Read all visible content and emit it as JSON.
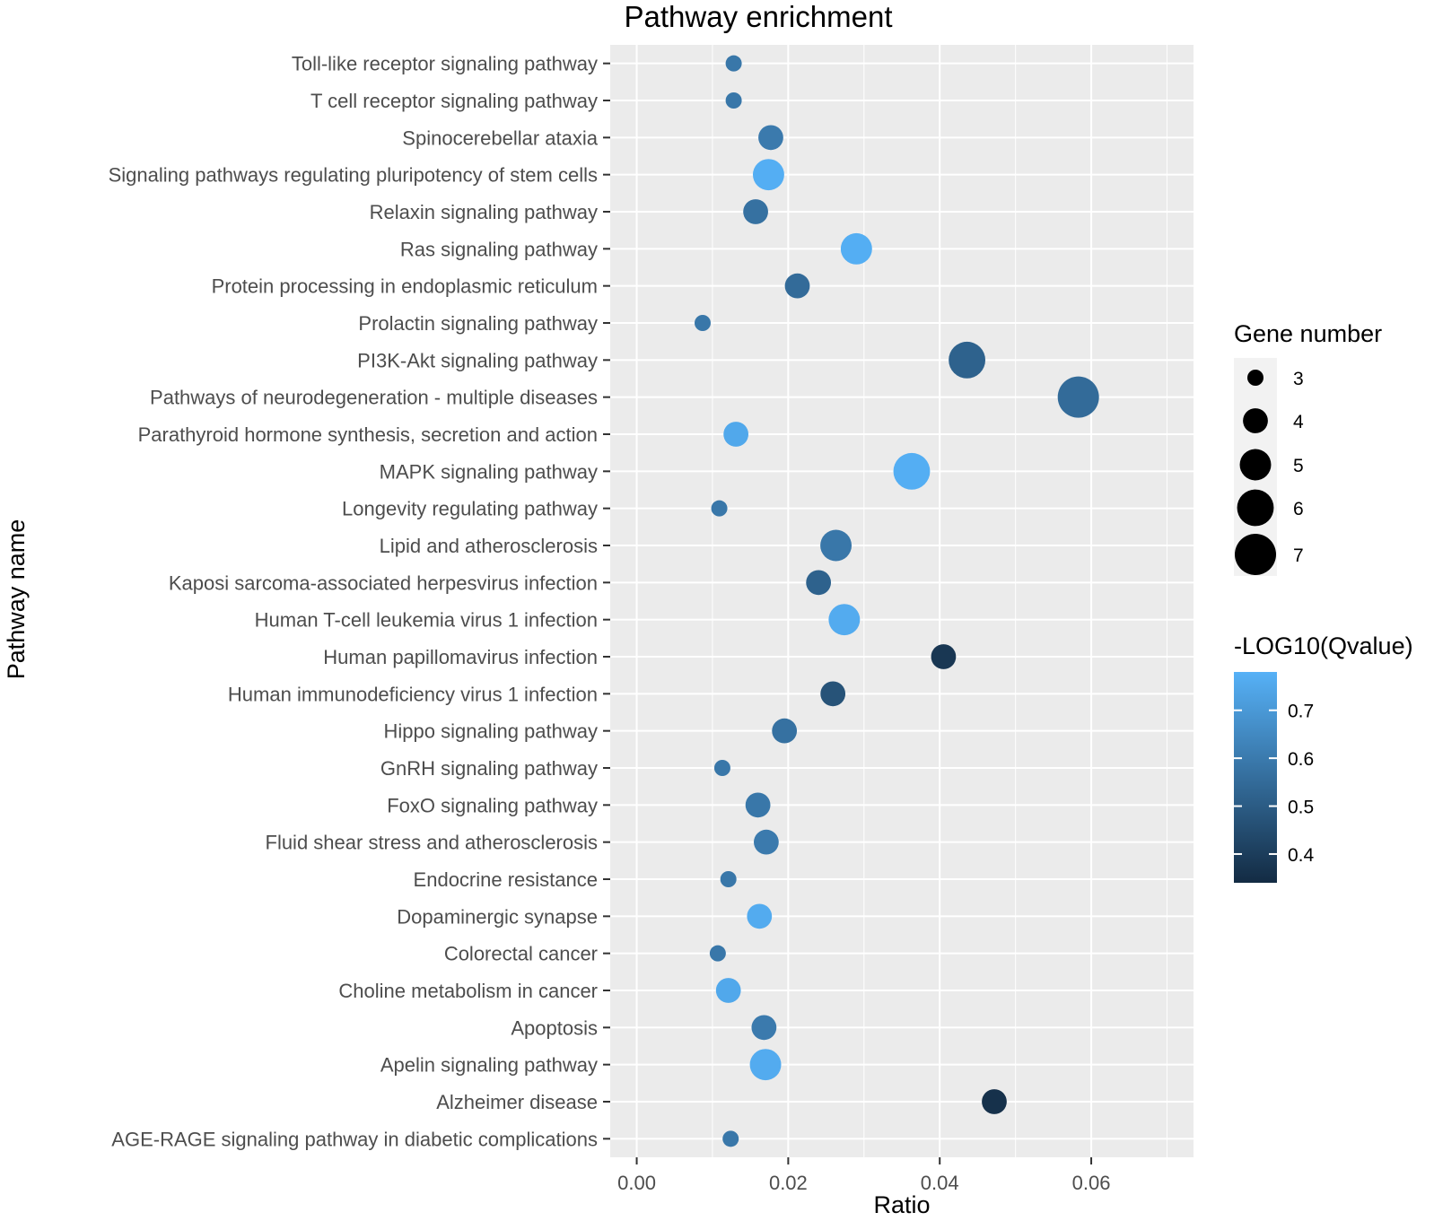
{
  "chart_data": {
    "type": "scatter",
    "title": "Pathway enrichment",
    "xlabel": "Ratio",
    "ylabel": "Pathway name",
    "xlim": [
      -0.0035,
      0.0735
    ],
    "xticks": [
      0.0,
      0.02,
      0.04,
      0.06
    ],
    "xtick_labels": [
      "0.00",
      "0.02",
      "0.04",
      "0.06"
    ],
    "grid": true,
    "legend_position": "right",
    "categories": [
      "Toll-like receptor signaling pathway",
      "T cell receptor signaling pathway",
      "Spinocerebellar ataxia",
      "Signaling pathways regulating pluripotency of stem cells",
      "Relaxin signaling pathway",
      "Ras signaling pathway",
      "Protein processing in endoplasmic reticulum",
      "Prolactin signaling pathway",
      "PI3K-Akt signaling pathway",
      "Pathways of neurodegeneration - multiple diseases",
      "Parathyroid hormone synthesis, secretion and action",
      "MAPK signaling pathway",
      "Longevity regulating pathway",
      "Lipid and atherosclerosis",
      "Kaposi sarcoma-associated herpesvirus infection",
      "Human T-cell leukemia virus 1 infection",
      "Human papillomavirus infection",
      "Human immunodeficiency virus 1 infection",
      "Hippo signaling pathway",
      "GnRH signaling pathway",
      "FoxO signaling pathway",
      "Fluid shear stress and atherosclerosis",
      "Endocrine resistance",
      "Dopaminergic synapse",
      "Colorectal cancer",
      "Choline metabolism in cancer",
      "Apoptosis",
      "Apelin signaling pathway",
      "Alzheimer disease",
      "AGE-RAGE signaling pathway in diabetic complications"
    ],
    "points": [
      {
        "x": 0.0128,
        "size": 3,
        "color": 0.59
      },
      {
        "x": 0.0128,
        "size": 3,
        "color": 0.59
      },
      {
        "x": 0.0177,
        "size": 4,
        "color": 0.6
      },
      {
        "x": 0.0174,
        "size": 5,
        "color": 0.77
      },
      {
        "x": 0.0157,
        "size": 4,
        "color": 0.57
      },
      {
        "x": 0.029,
        "size": 5,
        "color": 0.77
      },
      {
        "x": 0.0212,
        "size": 4,
        "color": 0.55
      },
      {
        "x": 0.0087,
        "size": 3,
        "color": 0.59
      },
      {
        "x": 0.0436,
        "size": 6,
        "color": 0.52
      },
      {
        "x": 0.0583,
        "size": 7,
        "color": 0.55
      },
      {
        "x": 0.0131,
        "size": 4,
        "color": 0.75
      },
      {
        "x": 0.0363,
        "size": 6,
        "color": 0.77
      },
      {
        "x": 0.0109,
        "size": 3,
        "color": 0.59
      },
      {
        "x": 0.0263,
        "size": 5,
        "color": 0.59
      },
      {
        "x": 0.024,
        "size": 4,
        "color": 0.52
      },
      {
        "x": 0.0274,
        "size": 5,
        "color": 0.76
      },
      {
        "x": 0.0405,
        "size": 4,
        "color": 0.38
      },
      {
        "x": 0.0259,
        "size": 4,
        "color": 0.47
      },
      {
        "x": 0.0195,
        "size": 4,
        "color": 0.57
      },
      {
        "x": 0.0113,
        "size": 3,
        "color": 0.59
      },
      {
        "x": 0.016,
        "size": 4,
        "color": 0.59
      },
      {
        "x": 0.0171,
        "size": 4,
        "color": 0.6
      },
      {
        "x": 0.0121,
        "size": 3,
        "color": 0.59
      },
      {
        "x": 0.0162,
        "size": 4,
        "color": 0.76
      },
      {
        "x": 0.0107,
        "size": 3,
        "color": 0.59
      },
      {
        "x": 0.0121,
        "size": 4,
        "color": 0.75
      },
      {
        "x": 0.0168,
        "size": 4,
        "color": 0.6
      },
      {
        "x": 0.017,
        "size": 5,
        "color": 0.76
      },
      {
        "x": 0.0472,
        "size": 4,
        "color": 0.36
      },
      {
        "x": 0.0124,
        "size": 3,
        "color": 0.59
      }
    ],
    "size_legend": {
      "title": "Gene number",
      "values": [
        3,
        4,
        5,
        6,
        7
      ],
      "labels": [
        "3",
        "4",
        "5",
        "6",
        "7"
      ]
    },
    "color_legend": {
      "title": "-LOG10(Qvalue)",
      "range": [
        0.34,
        0.78
      ],
      "ticks": [
        0.4,
        0.5,
        0.6,
        0.7
      ],
      "tick_labels": [
        "0.4",
        "0.5",
        "0.6",
        "0.7"
      ],
      "low_color": "#132B43",
      "high_color": "#56B1F7"
    }
  }
}
